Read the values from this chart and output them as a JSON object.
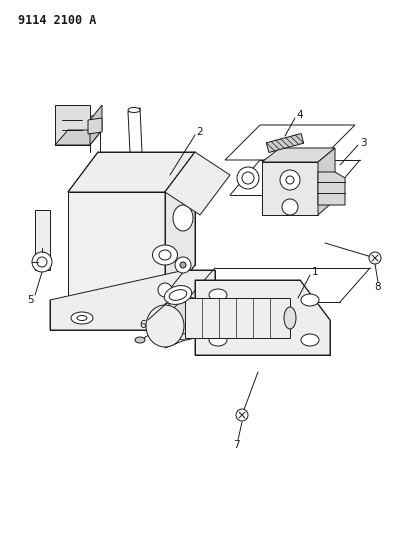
{
  "title": "9114 2100 A",
  "bg_color": "#ffffff",
  "line_color": "#1a1a1a",
  "title_fontsize": 8.5,
  "label_fontsize": 7.5,
  "figsize": [
    4.11,
    5.33
  ],
  "dpi": 100
}
